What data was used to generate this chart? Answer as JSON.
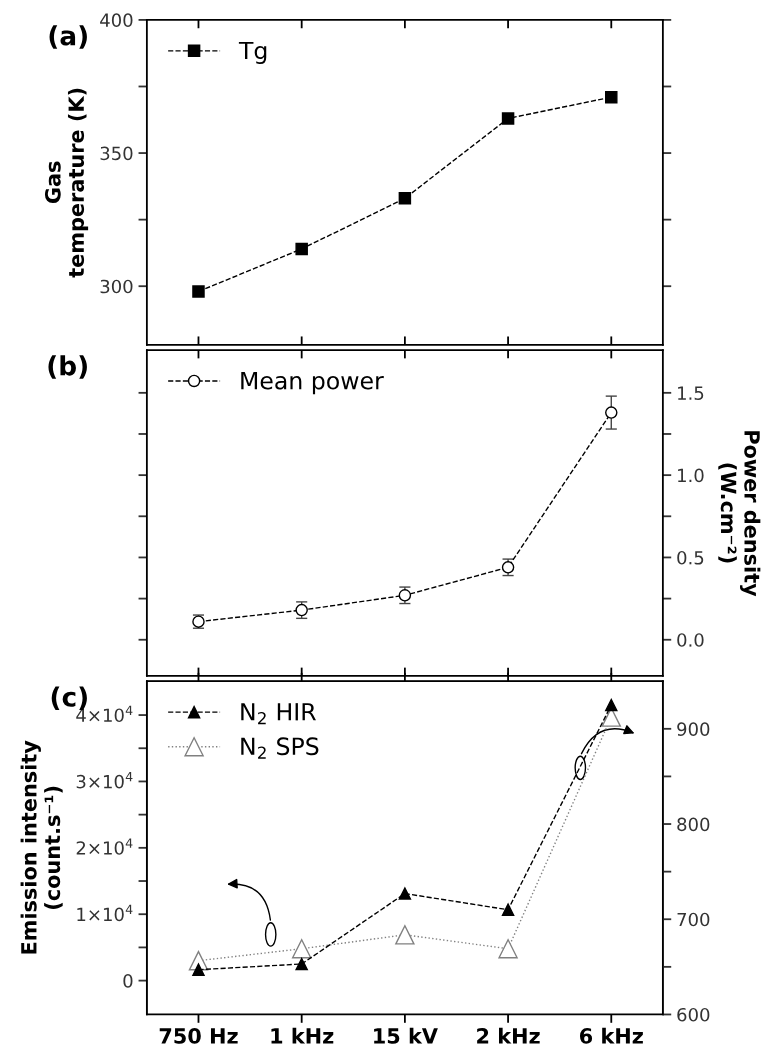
{
  "chart_data": [
    {
      "type": "line",
      "annotations": [
        "(a)"
      ],
      "ylabel": "Gas\ntemperature (K)",
      "categories": [
        null,
        null,
        null,
        null,
        null
      ],
      "series": [
        {
          "name": "Tg",
          "color": "#000000",
          "marker": "square",
          "line_style": "dashed",
          "values": [
            298,
            314,
            333,
            363,
            371
          ]
        }
      ],
      "ylim": [
        278,
        400
      ],
      "yticks": [
        300,
        {
          "value": 325,
          "label": null
        },
        350,
        {
          "value": 375,
          "label": null
        },
        400
      ],
      "legend": "top left",
      "tick_labels": "y",
      "grid": false
    },
    {
      "type": "line",
      "annotations": [
        "(b)"
      ],
      "ylabel": "Power density\n(W.cm⁻²)",
      "categories": [
        null,
        null,
        null,
        null,
        null
      ],
      "series": [
        {
          "name": "Mean power",
          "color": "#000000",
          "marker": "circle",
          "line_style": "dashed",
          "values": [
            0.11,
            0.18,
            0.27,
            0.44,
            1.38
          ],
          "errors": [
            0.04,
            0.05,
            0.05,
            0.05,
            0.1
          ]
        }
      ],
      "ylim": [
        -0.22,
        1.76
      ],
      "yticks": [
        {
          "value": 0,
          "label": "0.0"
        },
        {
          "value": 0.25,
          "label": null
        },
        0.5,
        {
          "value": 0.75,
          "label": null
        },
        {
          "value": 1,
          "label": "1.0"
        },
        {
          "value": 1.25,
          "label": null
        },
        1.5
      ],
      "legend": "top left",
      "tick_labels": "y",
      "grid": false
    },
    {
      "type": "line",
      "annotations": [
        "(c)"
      ],
      "ylabel": "Emission intensity\n(count.s⁻¹)",
      "categories": [
        "750 Hz",
        "1 kHz",
        "15 kV",
        "2 kHz",
        "6 kHz"
      ],
      "series": [
        {
          "name": "N$_{2}$ HIR",
          "color": "#000000",
          "marker": "triangle",
          "line_style": "dashed",
          "axis": "y2",
          "values": [
            647,
            653,
            727,
            710,
            925
          ]
        },
        {
          "name": "N$_{2}$ SPS",
          "color": "#808080",
          "marker": "triangle",
          "line_style": "dotted",
          "values": [
            3000,
            4800,
            6900,
            4800,
            39700
          ]
        }
      ],
      "ylim": [
        -5100,
        45100
      ],
      "yticks": [
        {
          "value": 0,
          "label": "0"
        },
        {
          "value": 5000,
          "label": null
        },
        {
          "value": 10000,
          "label": "1×10$^{4}$"
        },
        {
          "value": 15000,
          "label": null
        },
        {
          "value": 20000,
          "label": "2×10$^{4}$"
        },
        {
          "value": 25000,
          "label": null
        },
        {
          "value": 30000,
          "label": "3×10$^{4}$"
        },
        {
          "value": 35000,
          "label": null
        },
        {
          "value": 40000,
          "label": "4×10$^{4}$"
        }
      ],
      "y2lim": [
        600,
        950
      ],
      "y2ticks": [
        600,
        {
          "value": 650,
          "label": null
        },
        700,
        {
          "value": 750,
          "label": null
        },
        800,
        {
          "value": 850,
          "label": null
        },
        900
      ],
      "legend": "top left",
      "grid": false
    }
  ]
}
